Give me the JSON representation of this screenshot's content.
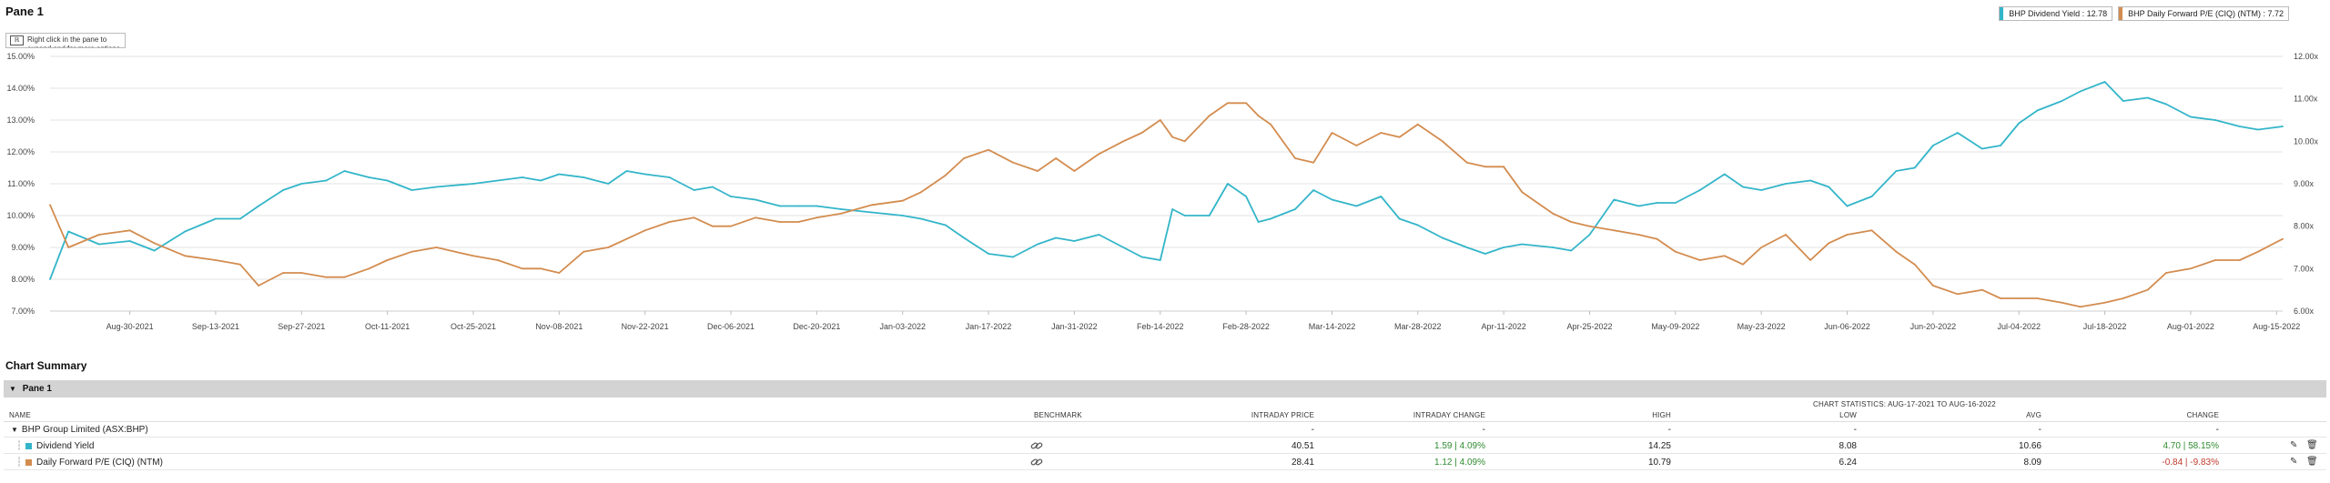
{
  "pane": {
    "title": "Pane 1",
    "hint_icon": "ℝ",
    "hint_text": "Right click in the pane to expand and for more options"
  },
  "legend": [
    {
      "label": "BHP Dividend Yield : 12.78",
      "color": "#33b5c9",
      "icon": "swatch"
    },
    {
      "label": "BHP Daily Forward P/E (CIQ) (NTM) : 7.72",
      "color": "#d38c4f",
      "icon": "swatch"
    }
  ],
  "chart_data": {
    "type": "line",
    "x_tick_labels": [
      "Aug-30-2021",
      "Sep-13-2021",
      "Sep-27-2021",
      "Oct-11-2021",
      "Oct-25-2021",
      "Nov-08-2021",
      "Nov-22-2021",
      "Dec-06-2021",
      "Dec-20-2021",
      "Jan-03-2022",
      "Jan-17-2022",
      "Jan-31-2022",
      "Feb-14-2022",
      "Feb-28-2022",
      "Mar-14-2022",
      "Mar-28-2022",
      "Apr-11-2022",
      "Apr-25-2022",
      "May-09-2022",
      "May-23-2022",
      "Jun-06-2022",
      "Jun-20-2022",
      "Jul-04-2022",
      "Jul-18-2022",
      "Aug-01-2022",
      "Aug-15-2022"
    ],
    "x_range": [
      "Aug-17-2021",
      "Aug-16-2022"
    ],
    "y_left": {
      "ticks": [
        "7.00%",
        "8.00%",
        "9.00%",
        "10.00%",
        "11.00%",
        "12.00%",
        "13.00%",
        "14.00%",
        "15.00%"
      ],
      "range": [
        7,
        15
      ]
    },
    "y_right": {
      "ticks": [
        "6.00x",
        "7.00x",
        "8.00x",
        "9.00x",
        "10.00x",
        "11.00x",
        "12.00x"
      ],
      "range": [
        6,
        12
      ]
    },
    "grid": true,
    "legend_position": "top-right",
    "series": [
      {
        "name": "BHP Dividend Yield",
        "axis": "left",
        "color": "#33b5c9",
        "x": [
          "Aug-17-2021",
          "Aug-20-2021",
          "Aug-25-2021",
          "Aug-30-2021",
          "Sep-03-2021",
          "Sep-08-2021",
          "Sep-13-2021",
          "Sep-17-2021",
          "Sep-20-2021",
          "Sep-24-2021",
          "Sep-27-2021",
          "Oct-01-2021",
          "Oct-04-2021",
          "Oct-08-2021",
          "Oct-11-2021",
          "Oct-15-2021",
          "Oct-19-2021",
          "Oct-25-2021",
          "Oct-29-2021",
          "Nov-02-2021",
          "Nov-05-2021",
          "Nov-08-2021",
          "Nov-12-2021",
          "Nov-16-2021",
          "Nov-19-2021",
          "Nov-22-2021",
          "Nov-26-2021",
          "Nov-30-2021",
          "Dec-03-2021",
          "Dec-06-2021",
          "Dec-10-2021",
          "Dec-14-2021",
          "Dec-17-2021",
          "Dec-20-2021",
          "Dec-24-2021",
          "Dec-29-2021",
          "Jan-03-2022",
          "Jan-06-2022",
          "Jan-10-2022",
          "Jan-13-2022",
          "Jan-17-2022",
          "Jan-21-2022",
          "Jan-25-2022",
          "Jan-28-2022",
          "Jan-31-2022",
          "Feb-04-2022",
          "Feb-08-2022",
          "Feb-11-2022",
          "Feb-14-2022",
          "Feb-16-2022",
          "Feb-18-2022",
          "Feb-22-2022",
          "Feb-25-2022",
          "Feb-28-2022",
          "Mar-02-2022",
          "Mar-04-2022",
          "Mar-08-2022",
          "Mar-11-2022",
          "Mar-14-2022",
          "Mar-18-2022",
          "Mar-22-2022",
          "Mar-25-2022",
          "Mar-28-2022",
          "Apr-01-2022",
          "Apr-05-2022",
          "Apr-08-2022",
          "Apr-11-2022",
          "Apr-14-2022",
          "Apr-19-2022",
          "Apr-22-2022",
          "Apr-25-2022",
          "Apr-29-2022",
          "May-03-2022",
          "May-06-2022",
          "May-09-2022",
          "May-13-2022",
          "May-17-2022",
          "May-20-2022",
          "May-23-2022",
          "May-27-2022",
          "May-31-2022",
          "Jun-03-2022",
          "Jun-06-2022",
          "Jun-10-2022",
          "Jun-14-2022",
          "Jun-17-2022",
          "Jun-20-2022",
          "Jun-24-2022",
          "Jun-28-2022",
          "Jul-01-2022",
          "Jul-04-2022",
          "Jul-07-2022",
          "Jul-11-2022",
          "Jul-14-2022",
          "Jul-18-2022",
          "Jul-21-2022",
          "Jul-25-2022",
          "Jul-28-2022",
          "Aug-01-2022",
          "Aug-05-2022",
          "Aug-09-2022",
          "Aug-12-2022",
          "Aug-16-2022"
        ],
        "y": [
          8.0,
          9.5,
          9.1,
          9.2,
          8.9,
          9.5,
          9.9,
          9.9,
          10.3,
          10.8,
          11.0,
          11.1,
          11.4,
          11.2,
          11.1,
          10.8,
          10.9,
          11.0,
          11.1,
          11.2,
          11.1,
          11.3,
          11.2,
          11.0,
          11.4,
          11.3,
          11.2,
          10.8,
          10.9,
          10.6,
          10.5,
          10.3,
          10.3,
          10.3,
          10.2,
          10.1,
          10.0,
          9.9,
          9.7,
          9.3,
          8.8,
          8.7,
          9.1,
          9.3,
          9.2,
          9.4,
          9.0,
          8.7,
          8.6,
          10.2,
          10.0,
          10.0,
          11.0,
          10.6,
          9.8,
          9.9,
          10.2,
          10.8,
          10.5,
          10.3,
          10.6,
          9.9,
          9.7,
          9.3,
          9.0,
          8.8,
          9.0,
          9.1,
          9.0,
          8.9,
          9.4,
          10.5,
          10.3,
          10.4,
          10.4,
          10.8,
          11.3,
          10.9,
          10.8,
          11.0,
          11.1,
          10.9,
          10.3,
          10.6,
          11.4,
          11.5,
          12.2,
          12.6,
          12.1,
          12.2,
          12.9,
          13.3,
          13.6,
          13.9,
          14.2,
          13.6,
          13.7,
          13.5,
          13.1,
          13.0,
          12.8,
          12.7,
          12.8
        ]
      },
      {
        "name": "BHP Daily Forward P/E (CIQ) (NTM)",
        "axis": "right",
        "color": "#d38c4f",
        "x": [
          "Aug-17-2021",
          "Aug-20-2021",
          "Aug-25-2021",
          "Aug-30-2021",
          "Sep-03-2021",
          "Sep-08-2021",
          "Sep-13-2021",
          "Sep-17-2021",
          "Sep-20-2021",
          "Sep-24-2021",
          "Sep-27-2021",
          "Oct-01-2021",
          "Oct-04-2021",
          "Oct-08-2021",
          "Oct-11-2021",
          "Oct-15-2021",
          "Oct-19-2021",
          "Oct-25-2021",
          "Oct-29-2021",
          "Nov-02-2021",
          "Nov-05-2021",
          "Nov-08-2021",
          "Nov-12-2021",
          "Nov-16-2021",
          "Nov-19-2021",
          "Nov-22-2021",
          "Nov-26-2021",
          "Nov-30-2021",
          "Dec-03-2021",
          "Dec-06-2021",
          "Dec-10-2021",
          "Dec-14-2021",
          "Dec-17-2021",
          "Dec-20-2021",
          "Dec-24-2021",
          "Dec-29-2021",
          "Jan-03-2022",
          "Jan-06-2022",
          "Jan-10-2022",
          "Jan-13-2022",
          "Jan-17-2022",
          "Jan-21-2022",
          "Jan-25-2022",
          "Jan-28-2022",
          "Jan-31-2022",
          "Feb-04-2022",
          "Feb-08-2022",
          "Feb-11-2022",
          "Feb-14-2022",
          "Feb-16-2022",
          "Feb-18-2022",
          "Feb-22-2022",
          "Feb-25-2022",
          "Feb-28-2022",
          "Mar-02-2022",
          "Mar-04-2022",
          "Mar-08-2022",
          "Mar-11-2022",
          "Mar-14-2022",
          "Mar-18-2022",
          "Mar-22-2022",
          "Mar-25-2022",
          "Mar-28-2022",
          "Apr-01-2022",
          "Apr-05-2022",
          "Apr-08-2022",
          "Apr-11-2022",
          "Apr-14-2022",
          "Apr-19-2022",
          "Apr-22-2022",
          "Apr-25-2022",
          "Apr-29-2022",
          "May-03-2022",
          "May-06-2022",
          "May-09-2022",
          "May-13-2022",
          "May-17-2022",
          "May-20-2022",
          "May-23-2022",
          "May-27-2022",
          "May-31-2022",
          "Jun-03-2022",
          "Jun-06-2022",
          "Jun-10-2022",
          "Jun-14-2022",
          "Jun-17-2022",
          "Jun-20-2022",
          "Jun-24-2022",
          "Jun-28-2022",
          "Jul-01-2022",
          "Jul-04-2022",
          "Jul-07-2022",
          "Jul-11-2022",
          "Jul-14-2022",
          "Jul-18-2022",
          "Jul-21-2022",
          "Jul-25-2022",
          "Jul-28-2022",
          "Aug-01-2022",
          "Aug-05-2022",
          "Aug-09-2022",
          "Aug-12-2022",
          "Aug-16-2022"
        ],
        "y": [
          8.5,
          7.5,
          7.8,
          7.9,
          7.6,
          7.3,
          7.2,
          7.1,
          6.6,
          6.9,
          6.9,
          6.8,
          6.8,
          7.0,
          7.2,
          7.4,
          7.5,
          7.3,
          7.2,
          7.0,
          7.0,
          6.9,
          7.4,
          7.5,
          7.7,
          7.9,
          8.1,
          8.2,
          8.0,
          8.0,
          8.2,
          8.1,
          8.1,
          8.2,
          8.3,
          8.5,
          8.6,
          8.8,
          9.2,
          9.6,
          9.8,
          9.5,
          9.3,
          9.6,
          9.3,
          9.7,
          10.0,
          10.2,
          10.5,
          10.1,
          10.0,
          10.6,
          10.9,
          10.9,
          10.6,
          10.4,
          9.6,
          9.5,
          10.2,
          9.9,
          10.2,
          10.1,
          10.4,
          10.0,
          9.5,
          9.4,
          9.4,
          8.8,
          8.3,
          8.1,
          8.0,
          7.9,
          7.8,
          7.7,
          7.4,
          7.2,
          7.3,
          7.1,
          7.5,
          7.8,
          7.2,
          7.6,
          7.8,
          7.9,
          7.4,
          7.1,
          6.6,
          6.4,
          6.5,
          6.3,
          6.3,
          6.3,
          6.2,
          6.1,
          6.2,
          6.3,
          6.5,
          6.9,
          7.0,
          7.2,
          7.2,
          7.4,
          7.7
        ]
      }
    ]
  },
  "summary": {
    "title": "Chart Summary",
    "pane_label": "Pane 1",
    "stats_note": "CHART STATISTICS: AUG-17-2021 TO AUG-16-2022",
    "columns": {
      "name": "NAME",
      "benchmark": "BENCHMARK",
      "price": "INTRADAY PRICE",
      "change": "INTRADAY CHANGE",
      "high": "HIGH",
      "low": "LOW",
      "avg": "AVG",
      "pchange": "CHANGE"
    },
    "group": {
      "name": "BHP Group Limited (ASX:BHP)",
      "price": "-",
      "change": "-",
      "high": "-",
      "low": "-",
      "avg": "-",
      "pchange": "-"
    },
    "rows": [
      {
        "name": "Dividend Yield",
        "color": "#33b5c9",
        "price": "40.51",
        "change": "1.59 | 4.09%",
        "change_sign": "pos",
        "high": "14.25",
        "low": "8.08",
        "avg": "10.66",
        "pchange": "4.70 | 58.15%",
        "pchange_sign": "pos"
      },
      {
        "name": "Daily Forward P/E (CIQ) (NTM)",
        "color": "#d38c4f",
        "price": "28.41",
        "change": "1.12 | 4.09%",
        "change_sign": "pos",
        "high": "10.79",
        "low": "6.24",
        "avg": "8.09",
        "pchange": "-0.84 | -9.83%",
        "pchange_sign": "neg"
      }
    ]
  }
}
